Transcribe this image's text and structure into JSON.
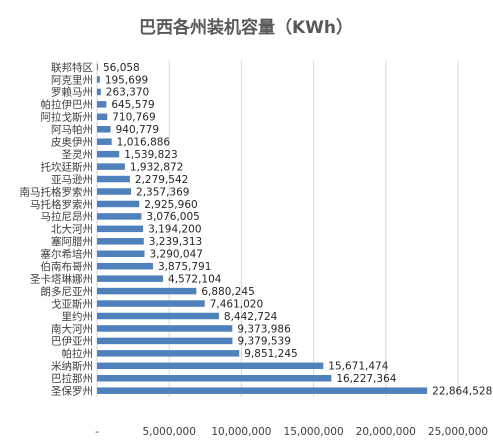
{
  "chart_data": {
    "type": "bar",
    "orientation": "horizontal",
    "title": "巴西各州装机容量（KWh）",
    "categories": [
      "联邦特区",
      "阿克里州",
      "罗赖马州",
      "帕拉伊巴州",
      "阿拉戈斯州",
      "阿马帕州",
      "皮奥伊州",
      "圣灵州",
      "托坎廷斯州",
      "亚马逊州",
      "南马托格罗索州",
      "马托格罗索州",
      "马拉尼昂州",
      "北大河州",
      "塞阿腊州",
      "塞尔希培州",
      "伯南布哥州",
      "圣卡塔琳娜州",
      "朗多尼亚州",
      "戈亚斯州",
      "里约州",
      "南大河州",
      "巴伊亚州",
      "帕拉州",
      "米纳斯州",
      "巴拉那州",
      "圣保罗州"
    ],
    "values": [
      56058,
      195699,
      263370,
      645579,
      710769,
      940779,
      1016886,
      1539823,
      1932872,
      2279542,
      2357369,
      2925960,
      3076005,
      3194200,
      3239313,
      3290047,
      3875791,
      4572104,
      6880245,
      7461020,
      8442724,
      9373986,
      9379539,
      9851245,
      15671474,
      16227364,
      22864528
    ],
    "value_labels": [
      "56,058",
      "195,699",
      "263,370",
      "645,579",
      "710,769",
      "940,779",
      "1,016,886",
      "1,539,823",
      "1,932,872",
      "2,279,542",
      "2,357,369",
      "2,925,960",
      "3,076,005",
      "3,194,200",
      "3,239,313",
      "3,290,047",
      "3,875,791",
      "4,572,104",
      "6,880,245",
      "7,461,020",
      "8,442,724",
      "9,373,986",
      "9,379,539",
      "9,851,245",
      "15,671,474",
      "16,227,364",
      "22,864,528"
    ],
    "xlim": [
      0,
      25000000
    ],
    "xticks": [
      0,
      5000000,
      10000000,
      15000000,
      20000000,
      25000000
    ],
    "xtick_labels": [
      "-",
      "5,000,000",
      "10,000,000",
      "15,000,000",
      "20,000,000",
      "25,000,000"
    ],
    "grid": true,
    "legend": "none",
    "bar_color": "#4f81bd"
  }
}
